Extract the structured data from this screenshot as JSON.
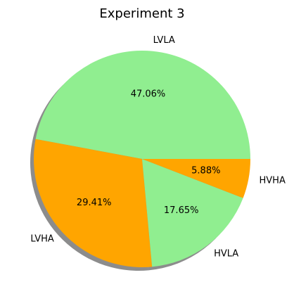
{
  "chart_data": {
    "type": "pie",
    "title": "Experiment 3",
    "labels": [
      "LVLA",
      "LVHA",
      "HVLA",
      "HVHA"
    ],
    "values": [
      47.06,
      29.41,
      17.65,
      5.88
    ],
    "percent_labels": [
      "47.06%",
      "29.41%",
      "17.65%",
      "5.88%"
    ],
    "colors": [
      "#90ee90",
      "#ffa500",
      "#90ee90",
      "#ffa500"
    ],
    "shadow": true
  }
}
